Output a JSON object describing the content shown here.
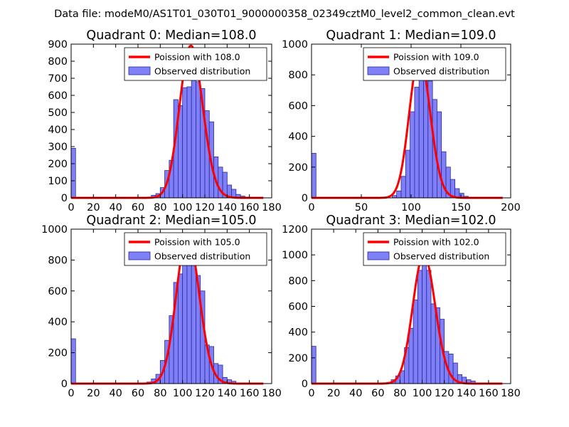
{
  "figure": {
    "suptitle": "Data file: modeM0/AS1T01_030T01_9000000358_02349cztM0_level2_common_clean.evt"
  },
  "colors": {
    "bar_fill": "#7f7ff7",
    "bar_edge": "#2a2a9c",
    "poisson_line": "#ff0000",
    "axes": "#000000",
    "background": "#ffffff"
  },
  "chart_data": [
    {
      "type": "bar",
      "title": "Quadrant 0: Median=108.0",
      "median": 108.0,
      "xlim": [
        0,
        180
      ],
      "ylim": [
        0,
        900
      ],
      "xticks": [
        0,
        20,
        40,
        60,
        80,
        100,
        120,
        140,
        160,
        180
      ],
      "yticks": [
        0,
        100,
        200,
        300,
        400,
        500,
        600,
        700,
        800,
        900
      ],
      "legend": {
        "position": "upper-right",
        "line_label": "Poission with 108.0",
        "bar_label": "Observed distribution"
      },
      "bin_width": 4,
      "bins": [
        0,
        4,
        8,
        12,
        16,
        20,
        24,
        28,
        32,
        36,
        40,
        44,
        48,
        52,
        56,
        60,
        64,
        68,
        72,
        76,
        80,
        84,
        88,
        92,
        96,
        100,
        104,
        108,
        112,
        116,
        120,
        124,
        128,
        132,
        136,
        140,
        144,
        148,
        152,
        156,
        160,
        164
      ],
      "counts": [
        290,
        0,
        0,
        0,
        0,
        0,
        0,
        0,
        0,
        0,
        0,
        0,
        0,
        0,
        0,
        0,
        0,
        0,
        15,
        25,
        60,
        160,
        220,
        575,
        540,
        645,
        650,
        690,
        680,
        640,
        510,
        445,
        240,
        180,
        150,
        75,
        50,
        20,
        10,
        5,
        2,
        0
      ],
      "poisson": {
        "lambda": 108.0,
        "scale": 890
      }
    },
    {
      "type": "bar",
      "title": "Quadrant 1: Median=109.0",
      "median": 109.0,
      "xlim": [
        0,
        200
      ],
      "ylim": [
        0,
        1000
      ],
      "xticks": [
        0,
        50,
        100,
        150,
        200
      ],
      "yticks": [
        0,
        200,
        400,
        600,
        800,
        1000
      ],
      "legend": {
        "position": "upper-right",
        "line_label": "Poission with 109.0",
        "bar_label": "Observed distribution"
      },
      "bin_width": 4.5,
      "bins": [
        0,
        4.5,
        9,
        13.5,
        18,
        22.5,
        27,
        31.5,
        36,
        40.5,
        45,
        49.5,
        54,
        58.5,
        63,
        67.5,
        72,
        76.5,
        81,
        85.5,
        90,
        94.5,
        99,
        103.5,
        108,
        112.5,
        117,
        121.5,
        126,
        130.5,
        135,
        139.5,
        144,
        148.5,
        153,
        157.5,
        162,
        166.5,
        171,
        175.5
      ],
      "counts": [
        290,
        0,
        0,
        0,
        0,
        0,
        0,
        0,
        0,
        0,
        0,
        0,
        0,
        0,
        0,
        0,
        0,
        0,
        15,
        45,
        140,
        310,
        560,
        720,
        900,
        860,
        760,
        640,
        560,
        300,
        200,
        120,
        60,
        30,
        10,
        5,
        0,
        0,
        0,
        0
      ],
      "poisson": {
        "lambda": 109.0,
        "scale": 920
      }
    },
    {
      "type": "bar",
      "title": "Quadrant 2: Median=105.0",
      "median": 105.0,
      "xlim": [
        0,
        180
      ],
      "ylim": [
        0,
        1000
      ],
      "xticks": [
        0,
        20,
        40,
        60,
        80,
        100,
        120,
        140,
        160,
        180
      ],
      "yticks": [
        0,
        200,
        400,
        600,
        800,
        1000
      ],
      "legend": {
        "position": "upper-right",
        "line_label": "Poission with 105.0",
        "bar_label": "Observed distribution"
      },
      "bin_width": 4,
      "bins": [
        0,
        4,
        8,
        12,
        16,
        20,
        24,
        28,
        32,
        36,
        40,
        44,
        48,
        52,
        56,
        60,
        64,
        68,
        72,
        76,
        80,
        84,
        88,
        92,
        96,
        100,
        104,
        108,
        112,
        116,
        120,
        124,
        128,
        132,
        136,
        140,
        144,
        148,
        152,
        156,
        160,
        164
      ],
      "counts": [
        290,
        0,
        0,
        0,
        0,
        0,
        0,
        0,
        0,
        0,
        0,
        0,
        0,
        0,
        0,
        0,
        0,
        10,
        30,
        60,
        150,
        280,
        440,
        655,
        710,
        800,
        800,
        840,
        700,
        600,
        250,
        240,
        130,
        120,
        40,
        25,
        15,
        5,
        2,
        0,
        0,
        0
      ],
      "poisson": {
        "lambda": 105.0,
        "scale": 960
      }
    },
    {
      "type": "bar",
      "title": "Quadrant 3: Median=102.0",
      "median": 102.0,
      "xlim": [
        0,
        180
      ],
      "ylim": [
        0,
        1200
      ],
      "xticks": [
        0,
        20,
        40,
        60,
        80,
        100,
        120,
        140,
        160,
        180
      ],
      "yticks": [
        0,
        200,
        400,
        600,
        800,
        1000,
        1200
      ],
      "legend": {
        "position": "upper-right",
        "line_label": "Poission with 102.0",
        "bar_label": "Observed distribution"
      },
      "bin_width": 4,
      "bins": [
        0,
        4,
        8,
        12,
        16,
        20,
        24,
        28,
        32,
        36,
        40,
        44,
        48,
        52,
        56,
        60,
        64,
        68,
        72,
        76,
        80,
        84,
        88,
        92,
        96,
        100,
        104,
        108,
        112,
        116,
        120,
        124,
        128,
        132,
        136,
        140,
        144,
        148,
        152,
        156,
        160,
        164
      ],
      "counts": [
        290,
        0,
        0,
        0,
        0,
        0,
        0,
        0,
        0,
        0,
        0,
        0,
        0,
        0,
        0,
        0,
        0,
        10,
        30,
        60,
        100,
        280,
        430,
        650,
        880,
        950,
        880,
        620,
        590,
        500,
        250,
        230,
        160,
        70,
        50,
        30,
        20,
        5,
        2,
        0,
        0,
        0
      ],
      "poisson": {
        "lambda": 102.0,
        "scale": 1000
      }
    }
  ]
}
